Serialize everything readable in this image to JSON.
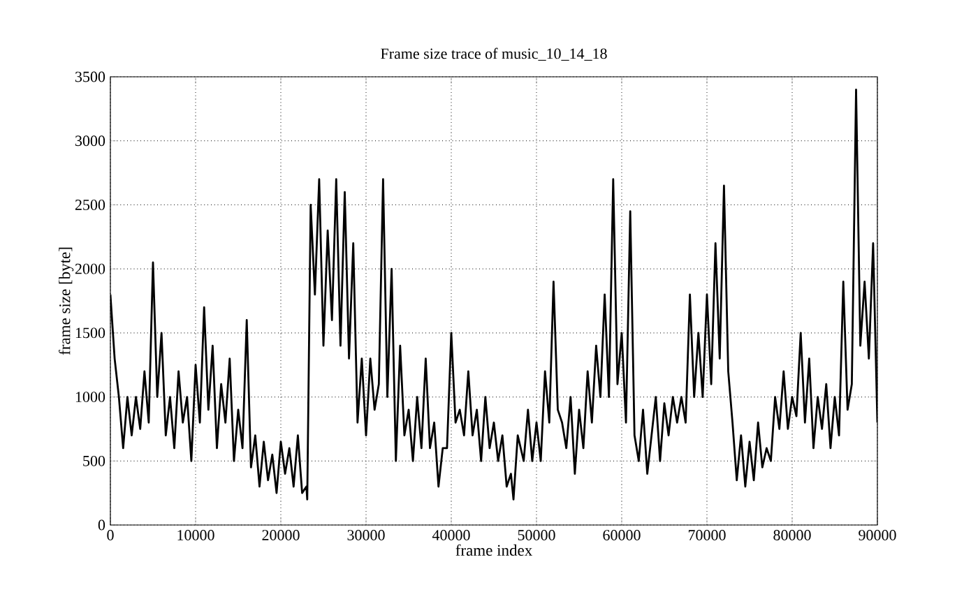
{
  "chart_data": {
    "type": "line",
    "title": "Frame size trace of music_10_14_18",
    "xlabel": "frame index",
    "ylabel": "frame size [byte]",
    "xlim": [
      0,
      90000
    ],
    "ylim": [
      0,
      3500
    ],
    "xticks": [
      0,
      10000,
      20000,
      30000,
      40000,
      50000,
      60000,
      70000,
      80000,
      90000
    ],
    "yticks": [
      0,
      500,
      1000,
      1500,
      2000,
      2500,
      3000,
      3500
    ],
    "grid": true,
    "color": "#000000",
    "x": [
      0,
      500,
      1000,
      1500,
      2000,
      2500,
      3000,
      3500,
      4000,
      4500,
      5000,
      5500,
      6000,
      6500,
      7000,
      7500,
      8000,
      8500,
      9000,
      9500,
      10000,
      10500,
      11000,
      11500,
      12000,
      12500,
      13000,
      13500,
      14000,
      14500,
      15000,
      15500,
      16000,
      16500,
      17000,
      17500,
      18000,
      18500,
      19000,
      19500,
      20000,
      20500,
      21000,
      21500,
      22000,
      22500,
      23000,
      23100,
      23500,
      24000,
      24500,
      25000,
      25500,
      26000,
      26500,
      27000,
      27500,
      28000,
      28500,
      29000,
      29500,
      30000,
      30500,
      31000,
      31500,
      32000,
      32500,
      33000,
      33500,
      34000,
      34500,
      35000,
      35500,
      36000,
      36500,
      37000,
      37500,
      38000,
      38500,
      39000,
      39500,
      40000,
      40500,
      41000,
      41500,
      42000,
      42500,
      43000,
      43500,
      44000,
      44500,
      45000,
      45500,
      46000,
      46500,
      47000,
      47300,
      47800,
      48500,
      49000,
      49500,
      50000,
      50500,
      51000,
      51500,
      52000,
      52500,
      53000,
      53500,
      54000,
      54500,
      55000,
      55500,
      56000,
      56500,
      57000,
      57500,
      58000,
      58500,
      59000,
      59500,
      60000,
      60500,
      61000,
      61500,
      62000,
      62500,
      63000,
      63500,
      64000,
      64500,
      65000,
      65500,
      66000,
      66500,
      67000,
      67500,
      68000,
      68500,
      69000,
      69500,
      70000,
      70500,
      71000,
      71500,
      72000,
      72500,
      73000,
      73500,
      74000,
      74500,
      75000,
      75500,
      76000,
      76500,
      77000,
      77500,
      78000,
      78500,
      79000,
      79500,
      80000,
      80500,
      81000,
      81500,
      82000,
      82500,
      83000,
      83500,
      84000,
      84500,
      85000,
      85500,
      86000,
      86500,
      87000,
      87500,
      88000,
      88500,
      89000,
      89500,
      90000
    ],
    "values": [
      1800,
      1300,
      1000,
      600,
      1000,
      700,
      1000,
      750,
      1200,
      800,
      2050,
      1000,
      1500,
      700,
      1000,
      600,
      1200,
      800,
      1000,
      500,
      1250,
      800,
      1700,
      900,
      1400,
      600,
      1100,
      800,
      1300,
      500,
      900,
      600,
      1600,
      450,
      700,
      300,
      650,
      350,
      550,
      250,
      650,
      400,
      600,
      300,
      700,
      250,
      300,
      200,
      2500,
      1800,
      2700,
      1400,
      2300,
      1600,
      2700,
      1400,
      2600,
      1300,
      2200,
      800,
      1300,
      700,
      1300,
      900,
      1100,
      2700,
      1000,
      2000,
      500,
      1400,
      700,
      900,
      500,
      1000,
      600,
      1300,
      600,
      800,
      300,
      600,
      600,
      1500,
      800,
      900,
      700,
      1200,
      700,
      900,
      500,
      1000,
      600,
      800,
      500,
      700,
      300,
      400,
      200,
      700,
      500,
      900,
      500,
      800,
      500,
      1200,
      800,
      1900,
      900,
      800,
      600,
      1000,
      400,
      900,
      600,
      1200,
      800,
      1400,
      1000,
      1800,
      1000,
      2700,
      1100,
      1500,
      800,
      2450,
      700,
      500,
      900,
      400,
      700,
      1000,
      500,
      950,
      700,
      1000,
      800,
      1000,
      800,
      1800,
      1000,
      1500,
      1000,
      1800,
      1100,
      2200,
      1300,
      2650,
      1200,
      800,
      350,
      700,
      300,
      650,
      350,
      800,
      450,
      600,
      500,
      1000,
      750,
      1200,
      750,
      1000,
      850,
      1500,
      800,
      1300,
      600,
      1000,
      750,
      1100,
      600,
      1000,
      700,
      1900,
      900,
      1100,
      3400,
      1400,
      1900,
      1300,
      2200,
      800
    ]
  }
}
